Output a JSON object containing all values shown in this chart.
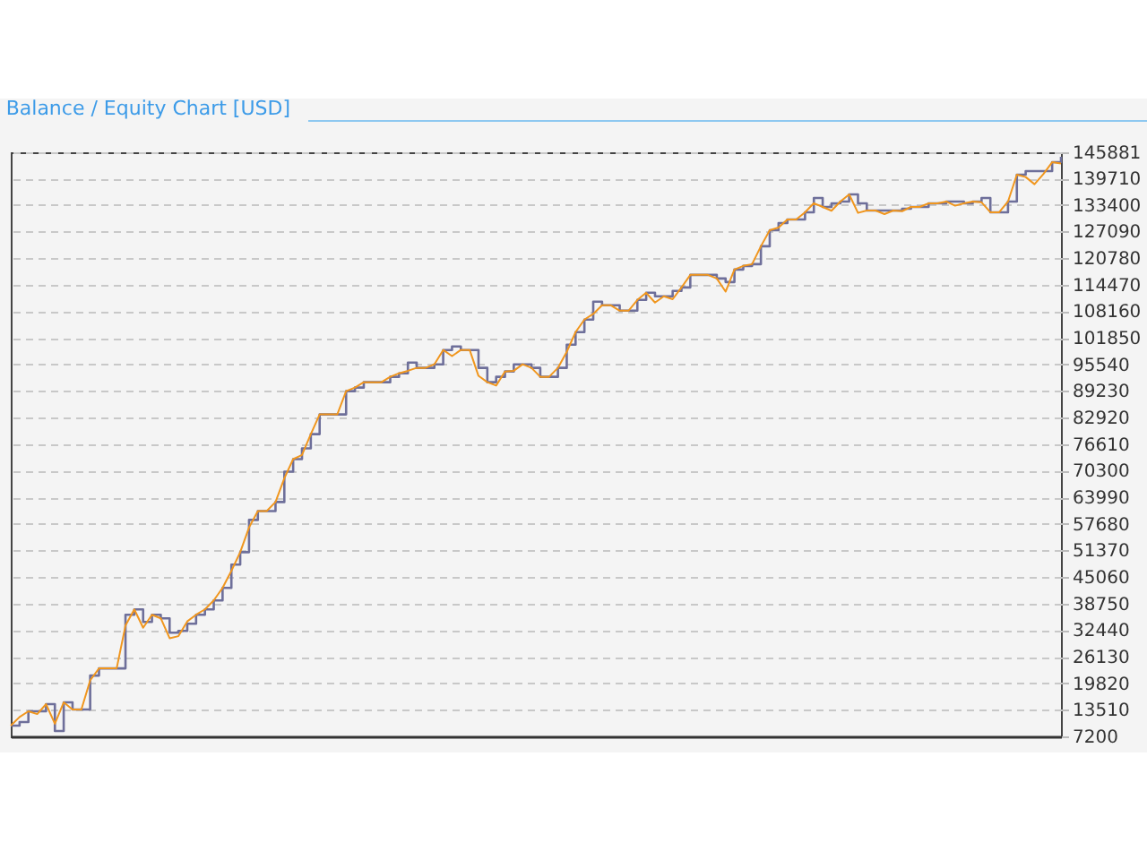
{
  "chart_data": {
    "type": "line",
    "title": "Balance / Equity Chart [USD]",
    "categories": [
      null,
      null,
      null,
      null,
      null,
      null,
      null,
      null,
      null,
      null,
      null,
      null,
      null,
      null,
      null,
      null,
      null,
      null,
      null,
      null,
      null,
      null,
      null,
      null,
      null,
      null,
      null,
      null,
      null,
      null,
      null,
      null,
      null,
      null,
      null,
      null,
      null,
      null,
      null,
      null,
      null,
      null,
      null,
      null,
      null,
      null,
      null,
      null,
      null,
      null,
      null,
      null,
      null,
      null,
      null,
      null,
      null,
      null,
      null,
      null,
      null,
      null,
      null,
      null,
      null,
      null,
      null,
      null,
      null,
      null,
      null,
      null,
      null,
      null,
      null,
      null,
      null,
      null,
      null,
      null,
      null,
      null,
      null,
      null,
      null,
      null,
      null,
      null,
      null,
      null,
      null,
      null,
      null,
      null,
      null,
      null,
      null,
      null,
      null,
      null,
      null,
      null,
      null,
      null,
      null,
      null,
      null,
      null,
      null,
      null,
      null,
      null,
      null,
      null,
      null,
      null,
      null,
      null,
      null,
      null
    ],
    "series": [
      {
        "type": "step",
        "color": "#6e6f9a",
        "values": [
          9750,
          10600,
          13150,
          13150,
          14850,
          8470,
          15270,
          13570,
          13570,
          21640,
          23340,
          23340,
          23340,
          36080,
          37350,
          34380,
          36080,
          35230,
          31830,
          32260,
          33960,
          36080,
          37350,
          39480,
          42450,
          47970,
          50940,
          58590,
          60710,
          60710,
          62840,
          70060,
          73030,
          75580,
          78970,
          83650,
          83650,
          83650,
          89170,
          90020,
          91290,
          91290,
          91290,
          92570,
          93410,
          95960,
          94690,
          94690,
          95540,
          98940,
          99790,
          98940,
          98940,
          94690,
          91290,
          92570,
          93840,
          95540,
          95540,
          94690,
          92570,
          92570,
          94690,
          100210,
          103180,
          106160,
          110400,
          109550,
          109550,
          108280,
          108280,
          110830,
          112530,
          111680,
          111680,
          112950,
          113800,
          116770,
          116770,
          116770,
          115920,
          115070,
          118050,
          118900,
          119320,
          123570,
          127390,
          129090,
          129940,
          129940,
          131640,
          135030,
          132910,
          133760,
          134190,
          135880,
          133760,
          132060,
          132060,
          132060,
          132060,
          132490,
          132910,
          132910,
          133760,
          133760,
          134190,
          134190,
          133760,
          134190,
          135030,
          131640,
          131640,
          134190,
          140560,
          141410,
          141410,
          141410,
          143530,
          144800
        ]
      },
      {
        "type": "line",
        "color": "#f0961e",
        "values": [
          9750,
          11800,
          13150,
          12500,
          14850,
          10200,
          15270,
          13570,
          13570,
          20500,
          23340,
          23340,
          23340,
          33500,
          37350,
          33000,
          36080,
          35230,
          30500,
          31000,
          34500,
          36080,
          37350,
          39480,
          42450,
          46500,
          50940,
          56800,
          60710,
          60710,
          62840,
          68500,
          73030,
          74000,
          78970,
          83650,
          83650,
          83650,
          89170,
          90020,
          91290,
          91290,
          91290,
          92570,
          93410,
          94000,
          94690,
          94690,
          95540,
          98940,
          97500,
          98940,
          98940,
          92800,
          91290,
          90500,
          93840,
          94000,
          95540,
          94690,
          92570,
          92570,
          94690,
          98500,
          103180,
          106160,
          107500,
          109550,
          109550,
          108280,
          108280,
          110830,
          112530,
          110200,
          111680,
          111000,
          113800,
          116770,
          116770,
          116770,
          115920,
          112800,
          118050,
          118900,
          119320,
          123570,
          127390,
          128000,
          129940,
          129940,
          131640,
          133800,
          132910,
          132000,
          134190,
          135880,
          131500,
          132060,
          132060,
          131200,
          132060,
          131900,
          132910,
          132910,
          133760,
          133760,
          134190,
          133200,
          133760,
          134190,
          134000,
          131640,
          131640,
          134190,
          140560,
          140000,
          138300,
          140700,
          143530,
          143200
        ]
      }
    ],
    "ylim": [
      7200,
      145881
    ],
    "yticks": [
      7200,
      13510,
      19820,
      26130,
      32440,
      38750,
      45060,
      51370,
      57680,
      63990,
      70300,
      76610,
      82920,
      89230,
      95540,
      101850,
      108160,
      114470,
      120780,
      127090,
      133400,
      139710,
      145881
    ],
    "grid": "y",
    "legend": false,
    "tick_labels": "y",
    "marker": "none",
    "line_style": "solid"
  }
}
